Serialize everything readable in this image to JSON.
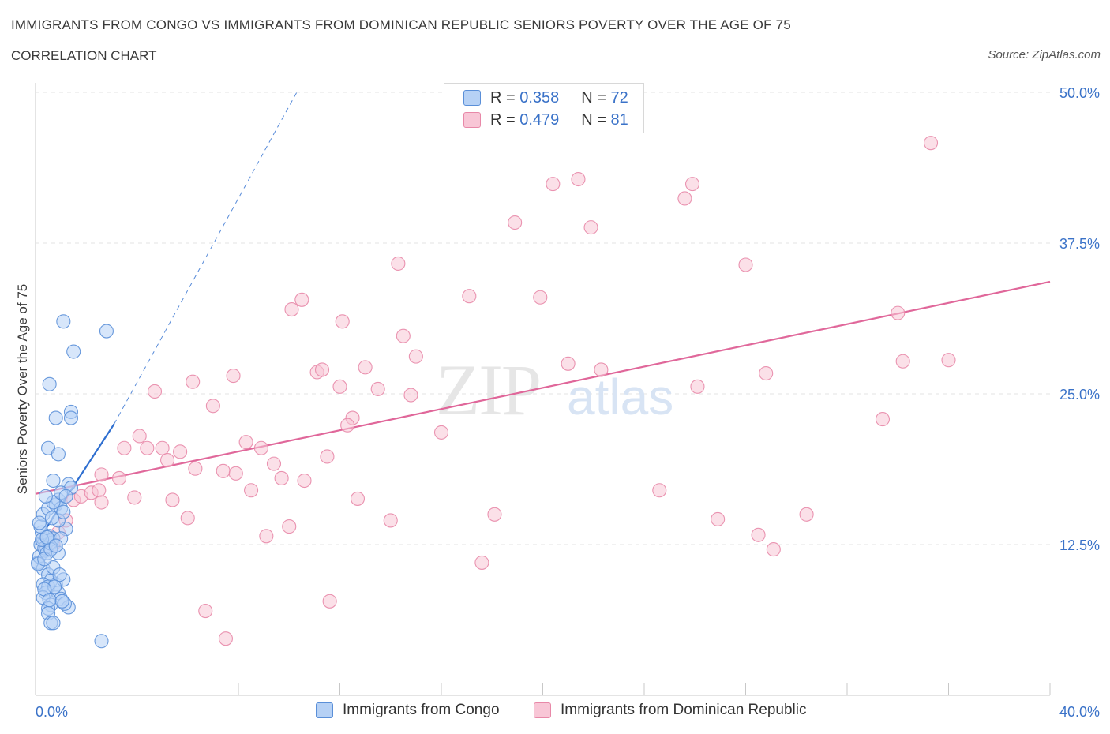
{
  "header": {
    "title": "IMMIGRANTS FROM CONGO VS IMMIGRANTS FROM DOMINICAN REPUBLIC SENIORS POVERTY OVER THE AGE OF 75",
    "subtitle": "CORRELATION CHART",
    "source": "Source: ZipAtlas.com"
  },
  "stats_legend": {
    "congo": {
      "r_label": "R =",
      "r_value": "0.358",
      "n_label": "N =",
      "n_value": "72"
    },
    "dominican": {
      "r_label": "R =",
      "r_value": "0.479",
      "n_label": "N =",
      "n_value": "81"
    }
  },
  "watermark": {
    "zip": "ZIP",
    "atlas": "atlas"
  },
  "colors": {
    "congo_fill": "#b6d1f5",
    "congo_stroke": "#5a8fd8",
    "congo_line": "#2f6fd0",
    "dom_fill": "#f8c6d6",
    "dom_stroke": "#e888a8",
    "dom_line": "#e0679a",
    "axis_text": "#3a72c8",
    "grid": "#e3e3e3"
  },
  "chart_data": {
    "type": "scatter",
    "title": "IMMIGRANTS FROM CONGO VS IMMIGRANTS FROM DOMINICAN REPUBLIC SENIORS POVERTY OVER THE AGE OF 75",
    "xlabel": "",
    "ylabel": "Seniors Poverty Over the Age of 75",
    "xlim": [
      0,
      40
    ],
    "ylim": [
      0,
      50
    ],
    "x_tick_labels": [
      "0.0%",
      "40.0%"
    ],
    "y_ticks": [
      12.5,
      25.0,
      37.5,
      50.0
    ],
    "y_tick_labels": [
      "12.5%",
      "25.0%",
      "37.5%",
      "50.0%"
    ],
    "grid": true,
    "legend_position": "bottom-center",
    "series": [
      {
        "name": "Immigrants from Congo",
        "r": 0.358,
        "n": 72,
        "trend": {
          "x0": 0.0,
          "y0": 12.5,
          "x1": 3.1,
          "y1": 22.5,
          "x_ext": 10.3,
          "y_ext": 50.0
        },
        "points": [
          [
            0.1,
            11.0
          ],
          [
            0.2,
            12.5
          ],
          [
            0.3,
            13.0
          ],
          [
            0.15,
            11.5
          ],
          [
            0.4,
            12.0
          ],
          [
            0.5,
            12.8
          ],
          [
            0.25,
            13.5
          ],
          [
            0.35,
            12.2
          ],
          [
            0.45,
            11.8
          ],
          [
            0.55,
            13.2
          ],
          [
            0.6,
            12.6
          ],
          [
            0.7,
            13.0
          ],
          [
            0.2,
            14.0
          ],
          [
            0.3,
            15.0
          ],
          [
            0.5,
            15.5
          ],
          [
            0.8,
            15.8
          ],
          [
            0.9,
            16.2
          ],
          [
            1.0,
            15.5
          ],
          [
            0.7,
            16.0
          ],
          [
            0.4,
            16.5
          ],
          [
            1.3,
            17.5
          ],
          [
            1.4,
            17.2
          ],
          [
            0.7,
            17.8
          ],
          [
            1.0,
            16.8
          ],
          [
            1.2,
            13.8
          ],
          [
            1.0,
            13.0
          ],
          [
            0.9,
            14.5
          ],
          [
            1.1,
            15.2
          ],
          [
            0.3,
            10.5
          ],
          [
            0.5,
            10.0
          ],
          [
            0.6,
            9.5
          ],
          [
            0.7,
            10.6
          ],
          [
            0.3,
            9.2
          ],
          [
            0.5,
            9.0
          ],
          [
            0.8,
            9.2
          ],
          [
            1.1,
            9.6
          ],
          [
            0.4,
            8.5
          ],
          [
            0.9,
            8.5
          ],
          [
            1.0,
            8.0
          ],
          [
            0.3,
            8.1
          ],
          [
            0.6,
            7.5
          ],
          [
            0.5,
            7.2
          ],
          [
            0.5,
            6.8
          ],
          [
            1.3,
            7.3
          ],
          [
            0.6,
            6.0
          ],
          [
            0.7,
            6.0
          ],
          [
            2.6,
            4.5
          ],
          [
            0.55,
            25.8
          ],
          [
            0.8,
            23.0
          ],
          [
            1.4,
            23.5
          ],
          [
            1.4,
            23.0
          ],
          [
            0.5,
            20.5
          ],
          [
            0.9,
            20.0
          ],
          [
            1.1,
            31.0
          ],
          [
            1.5,
            28.5
          ],
          [
            2.8,
            30.2
          ],
          [
            0.1,
            10.9
          ],
          [
            0.35,
            11.3
          ],
          [
            0.9,
            11.8
          ],
          [
            0.6,
            12.1
          ],
          [
            0.25,
            12.9
          ],
          [
            0.45,
            13.1
          ],
          [
            0.8,
            12.4
          ],
          [
            0.15,
            14.3
          ],
          [
            0.65,
            14.7
          ],
          [
            1.2,
            16.5
          ],
          [
            0.95,
            10.0
          ],
          [
            0.75,
            9.0
          ],
          [
            0.35,
            8.8
          ],
          [
            0.55,
            7.9
          ],
          [
            1.15,
            7.6
          ],
          [
            1.05,
            7.8
          ]
        ]
      },
      {
        "name": "Immigrants from Dominican Republic",
        "r": 0.479,
        "n": 81,
        "trend": {
          "x0": 0.0,
          "y0": 16.7,
          "x1": 40.0,
          "y1": 34.3
        },
        "points": [
          [
            0.4,
            12.2
          ],
          [
            0.7,
            12.5
          ],
          [
            0.9,
            13.5
          ],
          [
            1.2,
            14.5
          ],
          [
            1.5,
            16.2
          ],
          [
            1.8,
            16.5
          ],
          [
            2.2,
            16.8
          ],
          [
            2.5,
            17.0
          ],
          [
            2.6,
            16.0
          ],
          [
            2.6,
            18.3
          ],
          [
            3.3,
            18.0
          ],
          [
            3.9,
            16.4
          ],
          [
            3.5,
            20.5
          ],
          [
            4.1,
            21.5
          ],
          [
            4.4,
            20.5
          ],
          [
            5.0,
            20.5
          ],
          [
            4.7,
            25.2
          ],
          [
            5.2,
            19.5
          ],
          [
            5.7,
            20.2
          ],
          [
            5.4,
            16.2
          ],
          [
            6.0,
            14.7
          ],
          [
            6.2,
            26.0
          ],
          [
            6.3,
            18.8
          ],
          [
            7.0,
            24.0
          ],
          [
            6.7,
            7.0
          ],
          [
            7.4,
            18.6
          ],
          [
            7.8,
            26.5
          ],
          [
            7.5,
            4.7
          ],
          [
            8.3,
            21.0
          ],
          [
            8.5,
            17.0
          ],
          [
            8.9,
            20.5
          ],
          [
            9.1,
            13.2
          ],
          [
            9.4,
            19.2
          ],
          [
            9.7,
            18.0
          ],
          [
            10.1,
            32.0
          ],
          [
            10.0,
            14.0
          ],
          [
            10.5,
            32.8
          ],
          [
            10.6,
            17.8
          ],
          [
            11.1,
            26.8
          ],
          [
            11.3,
            27.0
          ],
          [
            11.5,
            19.8
          ],
          [
            11.6,
            7.8
          ],
          [
            12.0,
            25.6
          ],
          [
            12.1,
            31.0
          ],
          [
            12.5,
            23.0
          ],
          [
            12.7,
            16.3
          ],
          [
            13.0,
            27.2
          ],
          [
            13.5,
            25.4
          ],
          [
            14.0,
            14.5
          ],
          [
            14.3,
            35.8
          ],
          [
            14.5,
            29.8
          ],
          [
            14.8,
            24.9
          ],
          [
            15.0,
            28.1
          ],
          [
            16.0,
            21.8
          ],
          [
            17.1,
            33.1
          ],
          [
            17.6,
            11.0
          ],
          [
            18.1,
            15.0
          ],
          [
            18.9,
            39.2
          ],
          [
            19.9,
            33.0
          ],
          [
            20.4,
            42.4
          ],
          [
            21.0,
            27.5
          ],
          [
            21.4,
            42.8
          ],
          [
            21.9,
            38.8
          ],
          [
            22.3,
            27.0
          ],
          [
            24.6,
            17.0
          ],
          [
            25.6,
            41.2
          ],
          [
            25.9,
            42.4
          ],
          [
            26.1,
            25.6
          ],
          [
            26.9,
            14.6
          ],
          [
            28.0,
            35.7
          ],
          [
            28.5,
            13.3
          ],
          [
            28.8,
            26.7
          ],
          [
            29.1,
            12.1
          ],
          [
            30.4,
            15.0
          ],
          [
            33.4,
            22.9
          ],
          [
            34.0,
            31.7
          ],
          [
            34.2,
            27.7
          ],
          [
            35.3,
            45.8
          ],
          [
            36.0,
            27.8
          ],
          [
            7.9,
            18.4
          ],
          [
            12.3,
            22.4
          ]
        ]
      }
    ]
  },
  "bottom_legend": {
    "congo_label": "Immigrants from Congo",
    "dominican_label": "Immigrants from Dominican Republic"
  }
}
